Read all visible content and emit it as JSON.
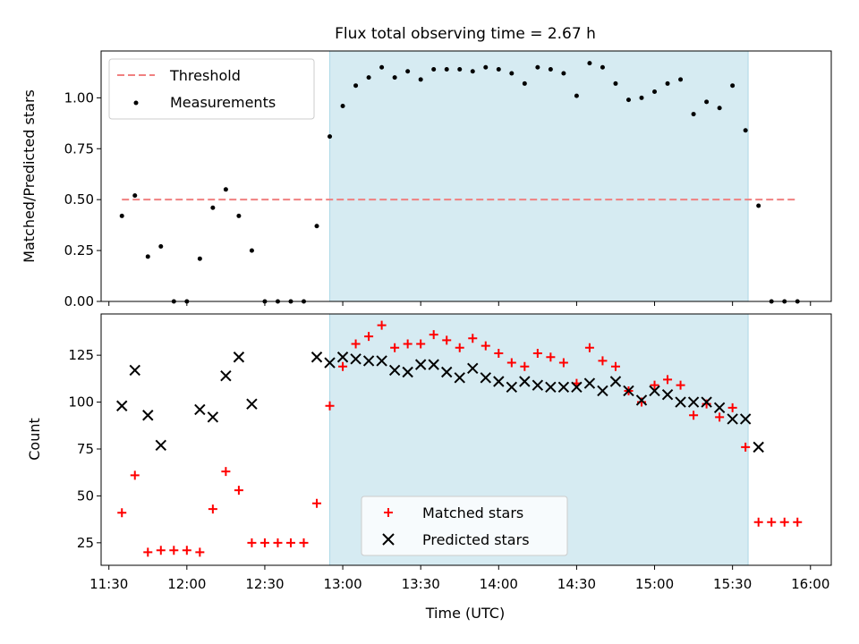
{
  "title": "Flux total observing time = 2.67 h",
  "xlabel": "Time (UTC)",
  "x_ticks": [
    "11:30",
    "12:00",
    "12:30",
    "13:00",
    "13:30",
    "14:00",
    "14:30",
    "15:00",
    "15:30",
    "16:00"
  ],
  "colors": {
    "threshold": "#f08080",
    "shade": "#add8e6",
    "matched": "#ff0000",
    "predicted": "#000000"
  },
  "chart_data": [
    {
      "type": "scatter",
      "ylabel": "Matched/Predicted stars",
      "xlim": [
        "11:27",
        "16:08"
      ],
      "ylim": [
        0.0,
        1.23
      ],
      "y_ticks": [
        "0.00",
        "0.25",
        "0.50",
        "0.75",
        "1.00"
      ],
      "shaded_region": {
        "x_start": "12:55",
        "x_end": "15:36"
      },
      "threshold": {
        "label": "Threshold",
        "value": 0.5,
        "x_start": "11:35",
        "x_end": "15:55"
      },
      "legend": {
        "position": "top-left",
        "entries": [
          "Threshold",
          "Measurements"
        ]
      },
      "series": [
        {
          "name": "Measurements",
          "x": [
            "11:35",
            "11:40",
            "11:45",
            "11:50",
            "11:55",
            "12:00",
            "12:05",
            "12:10",
            "12:15",
            "12:20",
            "12:25",
            "12:30",
            "12:35",
            "12:40",
            "12:45",
            "12:50",
            "12:55",
            "13:00",
            "13:05",
            "13:10",
            "13:15",
            "13:20",
            "13:25",
            "13:30",
            "13:35",
            "13:40",
            "13:45",
            "13:50",
            "13:55",
            "14:00",
            "14:05",
            "14:10",
            "14:15",
            "14:20",
            "14:25",
            "14:30",
            "14:35",
            "14:40",
            "14:45",
            "14:50",
            "14:55",
            "15:00",
            "15:05",
            "15:10",
            "15:15",
            "15:20",
            "15:25",
            "15:30",
            "15:35",
            "15:40",
            "15:45",
            "15:50",
            "15:55"
          ],
          "y": [
            0.42,
            0.52,
            0.22,
            0.27,
            0.0,
            0.0,
            0.21,
            0.46,
            0.55,
            0.42,
            0.25,
            0.0,
            0.0,
            0.0,
            0.0,
            0.37,
            0.81,
            0.96,
            1.06,
            1.1,
            1.15,
            1.1,
            1.13,
            1.09,
            1.14,
            1.14,
            1.14,
            1.13,
            1.15,
            1.14,
            1.12,
            1.07,
            1.15,
            1.14,
            1.12,
            1.01,
            1.17,
            1.15,
            1.07,
            0.99,
            1.0,
            1.03,
            1.07,
            1.09,
            0.92,
            0.98,
            0.95,
            1.06,
            0.84,
            0.47,
            0.0,
            0.0,
            0.0
          ]
        }
      ]
    },
    {
      "type": "scatter",
      "ylabel": "Count",
      "xlim": [
        "11:27",
        "16:08"
      ],
      "ylim": [
        13,
        147
      ],
      "y_ticks": [
        "25",
        "50",
        "75",
        "100",
        "125"
      ],
      "shaded_region": {
        "x_start": "12:55",
        "x_end": "15:36"
      },
      "legend": {
        "position": "bottom-center",
        "entries": [
          "Matched stars",
          "Predicted stars"
        ]
      },
      "series": [
        {
          "name": "Matched stars",
          "x": [
            "11:35",
            "11:40",
            "11:45",
            "11:50",
            "11:55",
            "12:00",
            "12:05",
            "12:10",
            "12:15",
            "12:20",
            "12:25",
            "12:30",
            "12:35",
            "12:40",
            "12:45",
            "12:50",
            "12:55",
            "13:00",
            "13:05",
            "13:10",
            "13:15",
            "13:20",
            "13:25",
            "13:30",
            "13:35",
            "13:40",
            "13:45",
            "13:50",
            "13:55",
            "14:00",
            "14:05",
            "14:10",
            "14:15",
            "14:20",
            "14:25",
            "14:30",
            "14:35",
            "14:40",
            "14:45",
            "14:50",
            "14:55",
            "15:00",
            "15:05",
            "15:10",
            "15:15",
            "15:20",
            "15:25",
            "15:30",
            "15:35",
            "15:40",
            "15:45",
            "15:50",
            "15:55"
          ],
          "y": [
            41,
            61,
            20,
            21,
            21,
            21,
            20,
            43,
            63,
            53,
            25,
            25,
            25,
            25,
            25,
            46,
            98,
            119,
            131,
            135,
            141,
            129,
            131,
            131,
            136,
            133,
            129,
            134,
            130,
            126,
            121,
            119,
            126,
            124,
            121,
            110,
            129,
            122,
            119,
            106,
            100,
            109,
            112,
            109,
            93,
            99,
            92,
            97,
            76,
            36,
            36,
            36,
            36
          ]
        },
        {
          "name": "Predicted stars",
          "x": [
            "11:35",
            "11:40",
            "11:45",
            "11:50",
            "12:05",
            "12:10",
            "12:15",
            "12:20",
            "12:25",
            "12:50",
            "12:55",
            "13:00",
            "13:05",
            "13:10",
            "13:15",
            "13:20",
            "13:25",
            "13:30",
            "13:35",
            "13:40",
            "13:45",
            "13:50",
            "13:55",
            "14:00",
            "14:05",
            "14:10",
            "14:15",
            "14:20",
            "14:25",
            "14:30",
            "14:35",
            "14:40",
            "14:45",
            "14:50",
            "14:55",
            "15:00",
            "15:05",
            "15:10",
            "15:15",
            "15:20",
            "15:25",
            "15:30",
            "15:35",
            "15:40"
          ],
          "y": [
            98,
            117,
            93,
            77,
            96,
            92,
            114,
            124,
            99,
            124,
            121,
            124,
            123,
            122,
            122,
            117,
            116,
            120,
            120,
            116,
            113,
            118,
            113,
            111,
            108,
            111,
            109,
            108,
            108,
            108,
            110,
            106,
            111,
            106,
            101,
            106,
            104,
            100,
            100,
            100,
            97,
            91,
            91,
            76
          ]
        }
      ]
    }
  ]
}
